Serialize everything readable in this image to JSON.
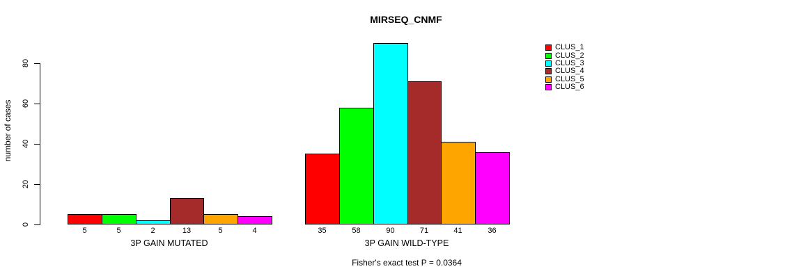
{
  "title": "MIRSEQ_CNMF",
  "ylabel": "number of cases",
  "caption": "Fisher's exact test P = 0.0364",
  "chart_data": {
    "type": "bar",
    "title": "MIRSEQ_CNMF",
    "ylabel": "number of cases",
    "xlabel": "",
    "groups": [
      {
        "label": "3P GAIN MUTATED",
        "values": [
          5,
          5,
          2,
          13,
          5,
          4
        ]
      },
      {
        "label": "3P GAIN WILD-TYPE",
        "values": [
          35,
          58,
          90,
          71,
          41,
          36
        ]
      }
    ],
    "series_names": [
      "CLUS_1",
      "CLUS_2",
      "CLUS_3",
      "CLUS_4",
      "CLUS_5",
      "CLUS_6"
    ],
    "colors": [
      "#FF0000",
      "#00FF00",
      "#00FFFF",
      "#A52A2A",
      "#FFA500",
      "#FF00FF"
    ],
    "yticks": [
      0,
      20,
      40,
      60,
      80
    ],
    "ylim": [
      0,
      90
    ],
    "grid": false,
    "legend_position": "right",
    "annotation": "Fisher's exact test P = 0.0364"
  }
}
